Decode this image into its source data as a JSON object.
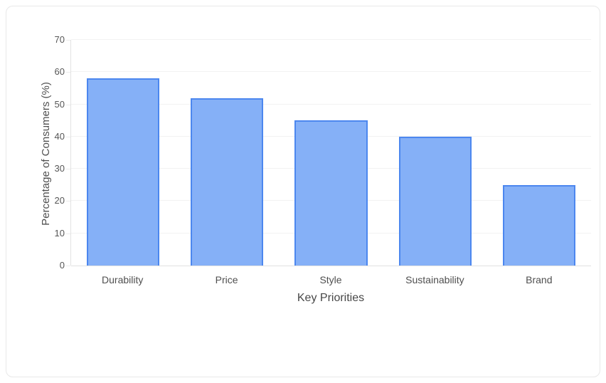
{
  "chart_data": {
    "type": "bar",
    "categories": [
      "Durability",
      "Price",
      "Style",
      "Sustainability",
      "Brand"
    ],
    "values": [
      58,
      52,
      45,
      40,
      25
    ],
    "title": "",
    "xlabel": "Key Priorities",
    "ylabel": "Percentage of Consumers (%)",
    "ylim": [
      0,
      70
    ],
    "ytick_step": 10,
    "ytick_labels": [
      "0",
      "10",
      "20",
      "30",
      "40",
      "50",
      "60",
      "70"
    ],
    "grid": true,
    "legend": false,
    "bar_width_fraction": 0.7
  },
  "colors": {
    "bar_fill": "#85b0f7",
    "bar_border": "#4c87ef",
    "gridline": "#f2f2f2",
    "axis_line": "#e2e2e2",
    "tick_text": "#565656",
    "label_text": "#4f4f4f",
    "title_text": "#474747",
    "card_border": "#e8e8e8",
    "background": "#ffffff"
  }
}
